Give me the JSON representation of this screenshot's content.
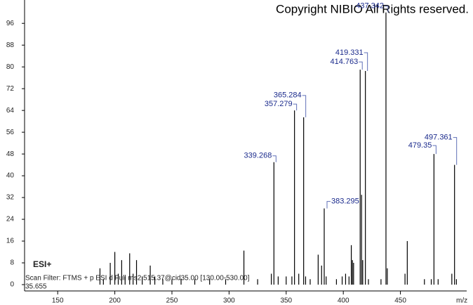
{
  "chart_data": {
    "type": "spectrum",
    "copyright": "Copyright NIBIO All Rights reserved.",
    "ionization": "ESI+",
    "scan_filter": "Scan Filter: FTMS + p ESI d Full ms2 515.37@cid35.00 [130.00-530.00]",
    "retention_time": "35.655",
    "x_label": "m/z",
    "xlim": [
      121,
      508
    ],
    "xticks": [
      150,
      200,
      250,
      300,
      350,
      400,
      450
    ],
    "ylim": [
      0,
      102
    ],
    "yticks": [
      0,
      8,
      16,
      24,
      32,
      40,
      48,
      56,
      64,
      72,
      80,
      88,
      96
    ],
    "color": "#000000",
    "x": [
      187,
      190,
      196,
      200,
      203,
      206,
      209,
      213,
      216,
      219,
      224,
      231,
      235,
      242,
      250,
      258,
      270,
      283,
      297,
      313,
      325,
      337,
      343,
      350,
      355,
      361,
      367,
      371,
      378,
      381,
      385,
      394,
      399,
      402,
      405,
      407,
      408,
      409,
      416,
      417,
      422,
      433,
      438.5,
      454,
      456,
      471,
      477,
      483,
      495,
      499
    ],
    "values": [
      6,
      2,
      8,
      12,
      4,
      9,
      3,
      11.5,
      4,
      9,
      3,
      7,
      3,
      2,
      2,
      2,
      2,
      2,
      2,
      12.5,
      2,
      4,
      3,
      3,
      3,
      4,
      3,
      2,
      11,
      7,
      3,
      2,
      3,
      4,
      3,
      14.5,
      9,
      8,
      33,
      9,
      2,
      2,
      6,
      4,
      16,
      2,
      2,
      2,
      4,
      2
    ],
    "annotated": {
      "x": [
        339.268,
        357.279,
        365.284,
        383.295,
        414.763,
        419.331,
        437.342,
        479.35,
        497.361
      ],
      "values": [
        45,
        64,
        61.5,
        28,
        79,
        78.5,
        100,
        48,
        44
      ],
      "label_color": "#1a2a8c",
      "bracket_color": "#6070b8"
    }
  }
}
